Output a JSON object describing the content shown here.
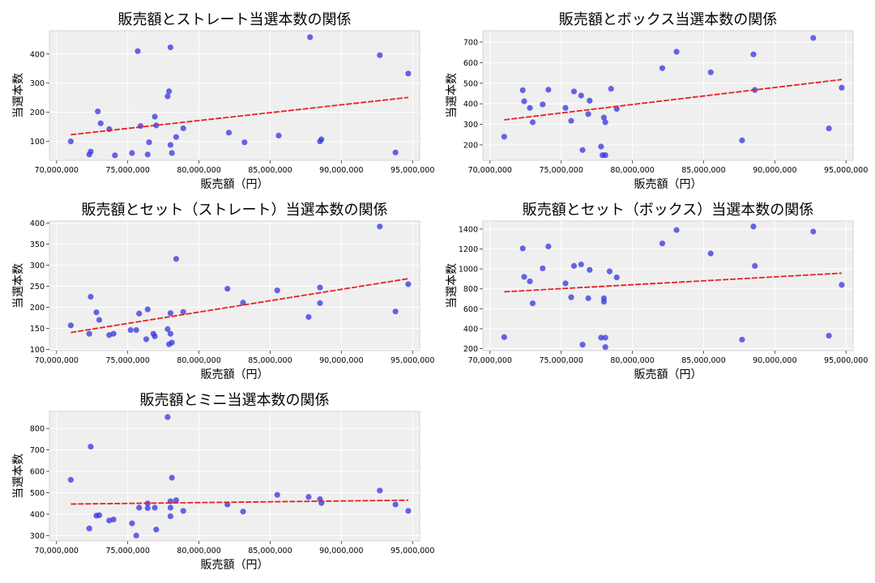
{
  "chart_data": [
    {
      "type": "scatter",
      "title": "販売額とストレート当選本数の関係",
      "xlabel": "販売額（円）",
      "ylabel": "当選本数",
      "xlim": [
        69500000,
        95500000
      ],
      "ylim": [
        35,
        480
      ],
      "xticks": [
        70000000,
        75000000,
        80000000,
        85000000,
        90000000,
        95000000
      ],
      "xtick_labels": [
        "70,000,000",
        "75,000,000",
        "80,000,000",
        "85,000,000",
        "90,000,000",
        "95,000,000"
      ],
      "yticks": [
        100,
        200,
        300,
        400
      ],
      "ytick_labels": [
        "100",
        "200",
        "300",
        "400"
      ],
      "grid": true,
      "trendline": {
        "x": [
          71000000,
          94700000
        ],
        "y": [
          123,
          251
        ]
      },
      "points": [
        [
          71000000,
          100
        ],
        [
          72300000,
          55
        ],
        [
          72400000,
          65
        ],
        [
          72900000,
          203
        ],
        [
          73100000,
          162
        ],
        [
          73700000,
          142
        ],
        [
          74100000,
          52
        ],
        [
          75300000,
          60
        ],
        [
          75700000,
          410
        ],
        [
          75900000,
          153
        ],
        [
          76400000,
          55
        ],
        [
          76500000,
          97
        ],
        [
          76900000,
          185
        ],
        [
          77000000,
          155
        ],
        [
          77800000,
          255
        ],
        [
          77900000,
          272
        ],
        [
          78000000,
          423
        ],
        [
          78000000,
          88
        ],
        [
          78100000,
          60
        ],
        [
          78400000,
          115
        ],
        [
          78900000,
          145
        ],
        [
          82100000,
          130
        ],
        [
          83200000,
          97
        ],
        [
          85600000,
          120
        ],
        [
          87800000,
          458
        ],
        [
          88500000,
          100
        ],
        [
          88600000,
          107
        ],
        [
          92700000,
          396
        ],
        [
          93800000,
          62
        ],
        [
          94700000,
          333
        ]
      ]
    },
    {
      "type": "scatter",
      "title": "販売額とボックス当選本数の関係",
      "xlabel": "販売額（円）",
      "ylabel": "当選本数",
      "xlim": [
        69500000,
        95500000
      ],
      "ylim": [
        125,
        755
      ],
      "xticks": [
        70000000,
        75000000,
        80000000,
        85000000,
        90000000,
        95000000
      ],
      "xtick_labels": [
        "70,000,000",
        "75,000,000",
        "80,000,000",
        "85,000,000",
        "90,000,000",
        "95,000,000"
      ],
      "yticks": [
        200,
        300,
        400,
        500,
        600,
        700
      ],
      "ytick_labels": [
        "200",
        "300",
        "400",
        "500",
        "600",
        "700"
      ],
      "grid": true,
      "trendline": {
        "x": [
          71000000,
          94700000
        ],
        "y": [
          322,
          518
        ]
      },
      "points": [
        [
          71000000,
          240
        ],
        [
          72300000,
          466
        ],
        [
          72400000,
          412
        ],
        [
          72800000,
          380
        ],
        [
          73000000,
          310
        ],
        [
          73700000,
          397
        ],
        [
          74100000,
          468
        ],
        [
          75300000,
          380
        ],
        [
          75700000,
          317
        ],
        [
          75900000,
          460
        ],
        [
          76400000,
          440
        ],
        [
          76500000,
          175
        ],
        [
          76900000,
          350
        ],
        [
          77000000,
          415
        ],
        [
          77800000,
          192
        ],
        [
          77900000,
          150
        ],
        [
          78000000,
          333
        ],
        [
          78100000,
          310
        ],
        [
          78100000,
          150
        ],
        [
          78500000,
          473
        ],
        [
          78900000,
          375
        ],
        [
          82100000,
          573
        ],
        [
          83100000,
          653
        ],
        [
          85500000,
          553
        ],
        [
          87700000,
          222
        ],
        [
          88500000,
          640
        ],
        [
          88600000,
          467
        ],
        [
          92700000,
          720
        ],
        [
          93800000,
          280
        ],
        [
          94700000,
          478
        ]
      ]
    },
    {
      "type": "scatter",
      "title": "販売額とセット（ストレート）当選本数の関係",
      "xlabel": "販売額（円）",
      "ylabel": "当選本数",
      "xlim": [
        69500000,
        95500000
      ],
      "ylim": [
        97,
        405
      ],
      "xticks": [
        70000000,
        75000000,
        80000000,
        85000000,
        90000000,
        95000000
      ],
      "xtick_labels": [
        "70,000,000",
        "75,000,000",
        "80,000,000",
        "85,000,000",
        "90,000,000",
        "95,000,000"
      ],
      "yticks": [
        100,
        150,
        200,
        250,
        300,
        350,
        400
      ],
      "ytick_labels": [
        "100",
        "150",
        "200",
        "250",
        "300",
        "350",
        "400"
      ],
      "grid": true,
      "trendline": {
        "x": [
          71000000,
          94700000
        ],
        "y": [
          140,
          268
        ]
      },
      "points": [
        [
          71000000,
          157
        ],
        [
          72300000,
          137
        ],
        [
          72400000,
          225
        ],
        [
          72800000,
          188
        ],
        [
          73000000,
          170
        ],
        [
          73700000,
          134
        ],
        [
          74000000,
          137
        ],
        [
          75200000,
          146
        ],
        [
          75600000,
          146
        ],
        [
          75800000,
          185
        ],
        [
          76300000,
          124
        ],
        [
          76400000,
          195
        ],
        [
          76800000,
          137
        ],
        [
          76900000,
          131
        ],
        [
          77800000,
          148
        ],
        [
          77900000,
          112
        ],
        [
          78000000,
          186
        ],
        [
          78000000,
          137
        ],
        [
          78100000,
          116
        ],
        [
          78400000,
          315
        ],
        [
          78900000,
          189
        ],
        [
          82000000,
          244
        ],
        [
          83100000,
          211
        ],
        [
          85500000,
          240
        ],
        [
          87700000,
          177
        ],
        [
          88500000,
          247
        ],
        [
          88500000,
          210
        ],
        [
          92700000,
          392
        ],
        [
          93800000,
          190
        ],
        [
          94700000,
          255
        ]
      ]
    },
    {
      "type": "scatter",
      "title": "販売額とセット（ボックス）当選本数の関係",
      "xlabel": "販売額（円）",
      "ylabel": "当選本数",
      "xlim": [
        69500000,
        95500000
      ],
      "ylim": [
        180,
        1480
      ],
      "xticks": [
        70000000,
        75000000,
        80000000,
        85000000,
        90000000,
        95000000
      ],
      "xtick_labels": [
        "70,000,000",
        "75,000,000",
        "80,000,000",
        "85,000,000",
        "90,000,000",
        "95,000,000"
      ],
      "yticks": [
        200,
        400,
        600,
        800,
        1000,
        1200,
        1400
      ],
      "ytick_labels": [
        "200",
        "400",
        "600",
        "800",
        "1000",
        "1200",
        "1400"
      ],
      "grid": true,
      "trendline": {
        "x": [
          71000000,
          94700000
        ],
        "y": [
          770,
          957
        ]
      },
      "points": [
        [
          71000000,
          315
        ],
        [
          72300000,
          1205
        ],
        [
          72400000,
          920
        ],
        [
          72800000,
          875
        ],
        [
          73000000,
          655
        ],
        [
          73700000,
          1005
        ],
        [
          74100000,
          1225
        ],
        [
          75300000,
          855
        ],
        [
          75700000,
          715
        ],
        [
          75900000,
          1030
        ],
        [
          76400000,
          1045
        ],
        [
          76500000,
          240
        ],
        [
          76900000,
          705
        ],
        [
          77000000,
          990
        ],
        [
          77800000,
          310
        ],
        [
          78000000,
          705
        ],
        [
          78000000,
          670
        ],
        [
          78100000,
          310
        ],
        [
          78100000,
          215
        ],
        [
          78400000,
          975
        ],
        [
          78900000,
          915
        ],
        [
          82100000,
          1255
        ],
        [
          83100000,
          1390
        ],
        [
          85500000,
          1155
        ],
        [
          87700000,
          290
        ],
        [
          88500000,
          1425
        ],
        [
          88600000,
          1030
        ],
        [
          92700000,
          1375
        ],
        [
          93800000,
          330
        ],
        [
          94700000,
          840
        ]
      ]
    },
    {
      "type": "scatter",
      "title": "販売額とミニ当選本数の関係",
      "xlabel": "販売額（円）",
      "ylabel": "当選本数",
      "xlim": [
        69500000,
        95500000
      ],
      "ylim": [
        275,
        880
      ],
      "xticks": [
        70000000,
        75000000,
        80000000,
        85000000,
        90000000,
        95000000
      ],
      "xtick_labels": [
        "70,000,000",
        "75,000,000",
        "80,000,000",
        "85,000,000",
        "90,000,000",
        "95,000,000"
      ],
      "yticks": [
        300,
        400,
        500,
        600,
        700,
        800
      ],
      "ytick_labels": [
        "300",
        "400",
        "500",
        "600",
        "700",
        "800"
      ],
      "grid": true,
      "trendline": {
        "x": [
          71000000,
          94700000
        ],
        "y": [
          447,
          465
        ]
      },
      "points": [
        [
          71000000,
          560
        ],
        [
          72300000,
          333
        ],
        [
          72400000,
          715
        ],
        [
          72800000,
          393
        ],
        [
          73000000,
          395
        ],
        [
          73700000,
          370
        ],
        [
          74000000,
          375
        ],
        [
          75300000,
          357
        ],
        [
          75600000,
          300
        ],
        [
          75800000,
          430
        ],
        [
          76400000,
          450
        ],
        [
          76400000,
          428
        ],
        [
          76900000,
          430
        ],
        [
          77000000,
          328
        ],
        [
          77800000,
          853
        ],
        [
          78000000,
          460
        ],
        [
          78000000,
          430
        ],
        [
          78000000,
          390
        ],
        [
          78100000,
          570
        ],
        [
          78400000,
          465
        ],
        [
          78900000,
          415
        ],
        [
          82000000,
          445
        ],
        [
          83100000,
          412
        ],
        [
          85500000,
          490
        ],
        [
          87700000,
          480
        ],
        [
          88500000,
          470
        ],
        [
          88600000,
          452
        ],
        [
          92700000,
          510
        ],
        [
          93800000,
          445
        ],
        [
          94700000,
          415
        ]
      ]
    }
  ]
}
